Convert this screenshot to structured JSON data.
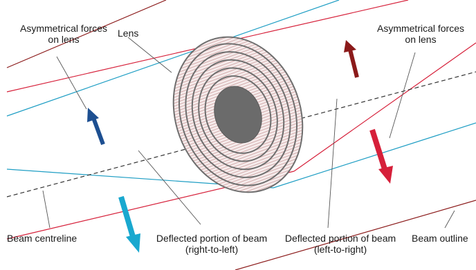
{
  "labels": {
    "forces_left": {
      "line1": "Asymmetrical forces",
      "line2": "on lens"
    },
    "forces_right": {
      "line1": "Asymmetrical forces",
      "line2": "on lens"
    },
    "lens": "Lens",
    "beam_centreline": "Beam centreline",
    "deflected_rtl": {
      "line1": "Deflected portion of beam",
      "line2": "(right-to-left)"
    },
    "deflected_ltr": {
      "line1": "Deflected portion of beam",
      "line2": "(left-to-right)"
    },
    "beam_outline": "Beam outline"
  },
  "colors": {
    "dark_red": "#8b1a1a",
    "red": "#d6203a",
    "cyan_line": "#1f9ec4",
    "lens_outline": "#6e6e6e",
    "lens_fill": "#f3e6e6",
    "lens_core": "#6b6b6b",
    "arrow_blue": "#1d4f91",
    "arrow_dark_red": "#8b1a1a",
    "arrow_red": "#d6203a",
    "arrow_cyan": "#19a8cf",
    "leader": "#555555"
  }
}
